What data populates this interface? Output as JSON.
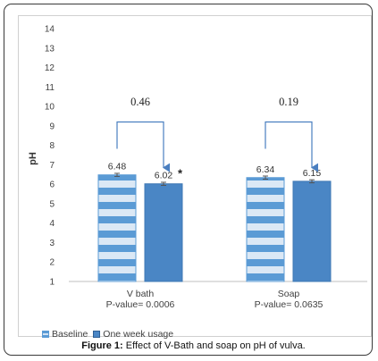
{
  "chart_data": {
    "type": "bar",
    "ylabel": "pH",
    "ylim": [
      1,
      14
    ],
    "yticks": [
      1,
      2,
      3,
      4,
      5,
      6,
      7,
      8,
      9,
      10,
      11,
      12,
      13,
      14
    ],
    "grid": false,
    "legend_position": "bottom-left",
    "categories": [
      "V bath",
      "Soap"
    ],
    "pvalues": [
      "P-value= 0.0006",
      "P-value= 0.0635"
    ],
    "series": [
      {
        "name": "Baseline",
        "values": [
          6.48,
          6.34
        ],
        "labels": [
          "6.48",
          "6.34"
        ],
        "color": "#5b9bd5",
        "pattern": "horizontal-stripes"
      },
      {
        "name": "One week usage",
        "values": [
          6.02,
          6.15
        ],
        "labels": [
          "6.02",
          "6.15"
        ],
        "color": "#4a86c5",
        "pattern": "solid"
      }
    ],
    "differences": [
      {
        "category": "V bath",
        "label": "0.46",
        "marker": "*"
      },
      {
        "category": "Soap",
        "label": "0.19",
        "marker": ""
      }
    ]
  },
  "caption": {
    "prefix": "Figure 1:",
    "text": " Effect of V-Bath and soap on pH of vulva."
  },
  "colors": {
    "baseline": "#5b9bd5",
    "baseline_stripe": "#dbe8f5",
    "week": "#4a86c5",
    "bracket": "#4a7fc0",
    "axis_text": "#404040"
  }
}
